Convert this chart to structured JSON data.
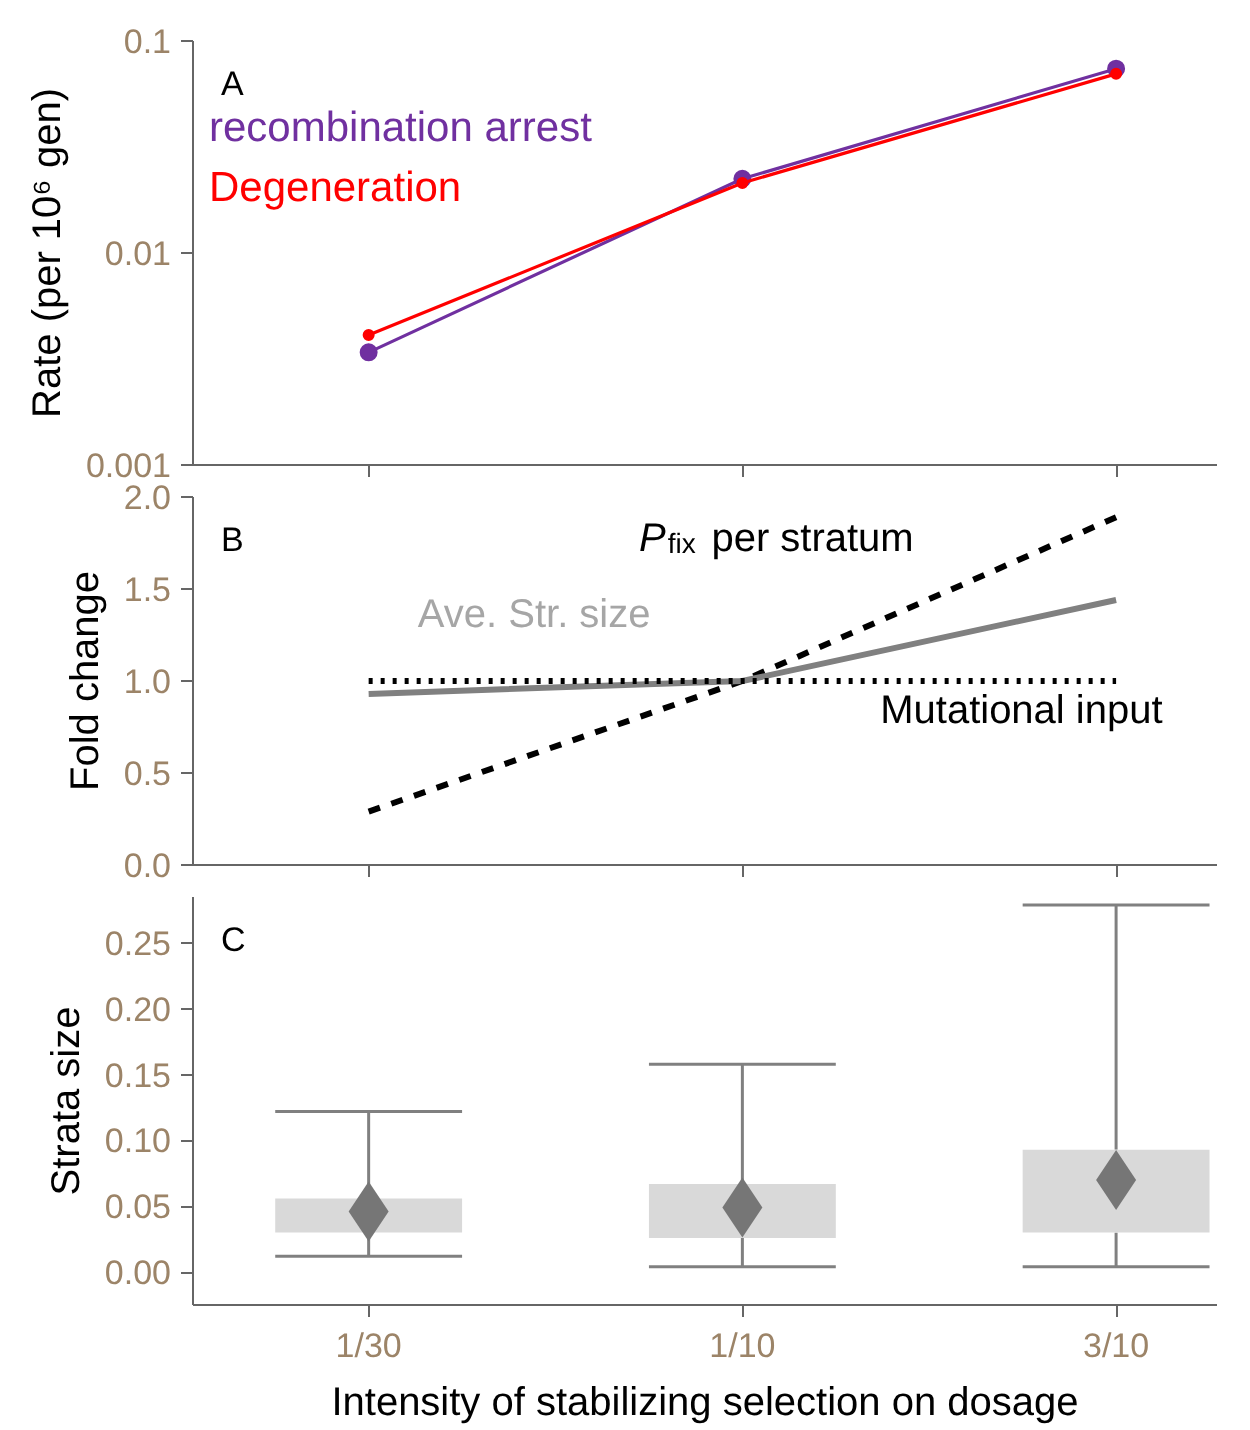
{
  "chart_data": [
    {
      "type": "line",
      "annotations": [
        "A"
      ],
      "ylabel": "Rate (per 10⁶ gen)",
      "categories": [
        null,
        null,
        null
      ],
      "log": true,
      "ylim": [
        0.001,
        0.1
      ],
      "yticks": [
        0.001,
        0.01,
        0.1
      ],
      "tick_labels": "y",
      "marker": "circle",
      "line_style": "solid",
      "series": [
        {
          "name": "recombination arrest",
          "color": "#7030a0",
          "values": [
            0.0034,
            0.0224,
            0.074
          ]
        },
        {
          "name": "Degeneration",
          "color": "#ff0000",
          "values": [
            0.0041,
            0.0214,
            0.07
          ]
        }
      ]
    },
    {
      "type": "line",
      "annotations": [
        "B"
      ],
      "ylabel": "Fold change",
      "categories": [
        null,
        null,
        null
      ],
      "ylim": [
        0.0,
        2.0
      ],
      "yticks": [
        {
          "value": 0,
          "label": "0.0"
        },
        {
          "value": 0.5,
          "label": "0.5"
        },
        {
          "value": 1,
          "label": "1.0"
        },
        {
          "value": 1.5,
          "label": "1.5"
        },
        {
          "value": 2,
          "label": "2.0"
        }
      ],
      "tick_labels": "y",
      "series": [
        {
          "name": "P$_{fix}$ per stratum",
          "color": "#000000",
          "line_style": "dashed",
          "values": [
            0.29,
            1.0,
            1.89
          ]
        },
        {
          "name": "Ave. Str. size",
          "color": "#808080",
          "line_style": "solid",
          "values": [
            0.93,
            1.0,
            1.44
          ]
        },
        {
          "name": "Mutational input",
          "color": "#000000",
          "line_style": "dotted",
          "values": [
            1.0,
            1.0,
            1.0
          ]
        }
      ]
    },
    {
      "type": "box",
      "annotations": [
        "C"
      ],
      "ylabel": "Strata size",
      "xlabel": "Intensity of stabilizing selection on dosage",
      "categories": [
        "1/30",
        "1/10",
        "3/10"
      ],
      "ylim": [
        -0.025,
        0.285
      ],
      "yticks": [
        {
          "value": 0,
          "label": "0.00"
        },
        {
          "value": 0.05,
          "label": "0.05"
        },
        {
          "value": 0.1,
          "label": "0.10"
        },
        {
          "value": 0.15,
          "label": "0.15"
        },
        {
          "value": 0.2,
          "label": "0.20"
        },
        {
          "value": 0.25,
          "label": "0.25"
        }
      ],
      "color": "#d9d9d9",
      "boxes": [
        {
          "low": 0.012,
          "q1": 0.03,
          "median": 0.046,
          "q3": 0.056,
          "high": 0.122
        },
        {
          "low": 0.004,
          "q1": 0.026,
          "median": 0.049,
          "q3": 0.067,
          "high": 0.158
        },
        {
          "low": 0.004,
          "q1": 0.03,
          "median": 0.07,
          "q3": 0.093,
          "high": 0.279
        }
      ]
    }
  ]
}
